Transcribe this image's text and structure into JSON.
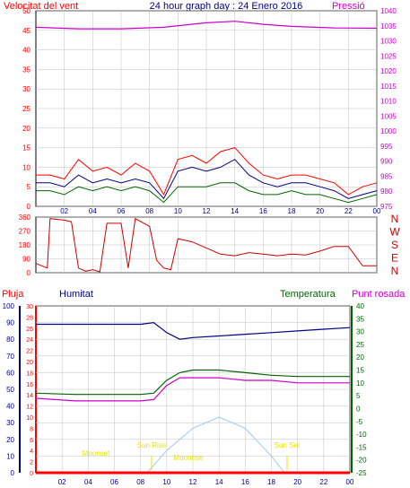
{
  "title": "24 hour graph day : 24 Enero 2016",
  "colors": {
    "red": "#ff0000",
    "blue": "#00008b",
    "green": "#006400",
    "magenta": "#cc00cc",
    "sky": "#a0c8f0",
    "yellow": "#e6e600",
    "grid": "#c0c0c0"
  },
  "time_ticks": [
    "02",
    "04",
    "06",
    "08",
    "10",
    "12",
    "14",
    "16",
    "18",
    "20",
    "22",
    "00"
  ],
  "panel1": {
    "left_title": "Velocitat del vent",
    "right_title": "Pressió",
    "left_ticks": [
      "50",
      "45",
      "40",
      "35",
      "30",
      "25",
      "20",
      "15",
      "10",
      "5",
      "0"
    ],
    "right_ticks": [
      "1040",
      "1035",
      "1030",
      "1025",
      "1020",
      "1015",
      "1010",
      "1005",
      "1000",
      "995",
      "990",
      "985",
      "980",
      "975"
    ]
  },
  "panel2": {
    "left_ticks": [
      "360",
      "270",
      "180",
      "90",
      "0"
    ],
    "compass": [
      "N",
      "W",
      "S",
      "E",
      "N"
    ]
  },
  "panel3": {
    "label_rain": "Pluja",
    "label_hum": "Humitat",
    "label_temp": "Temperatura",
    "label_dew": "Punt rosada",
    "hum_ticks": [
      "100",
      "90",
      "80",
      "70",
      "60",
      "50",
      "40",
      "30",
      "20",
      "10",
      "0"
    ],
    "rain_ticks": [
      "30",
      "28",
      "26",
      "24",
      "22",
      "20",
      "18",
      "16",
      "14",
      "12",
      "10",
      "8",
      "6",
      "4",
      "2",
      "0"
    ],
    "temp_ticks": [
      "40",
      "35",
      "30",
      "25",
      "20",
      "15",
      "10",
      "5",
      "0",
      "-5",
      "-10",
      "-15",
      "-20",
      "-25"
    ],
    "sun_labels": {
      "moonset": "Moonset",
      "sunrise": "Sun Rise",
      "moonrise": "Moonrise",
      "sunset": "Sun Set"
    }
  },
  "chart_data": [
    {
      "type": "line",
      "x_unit": "hour",
      "y_range": [
        0,
        50
      ],
      "y2_range": [
        975,
        1040
      ],
      "wind_gust": [
        [
          0,
          8
        ],
        [
          1,
          8
        ],
        [
          2,
          7
        ],
        [
          3,
          12
        ],
        [
          4,
          9
        ],
        [
          5,
          10
        ],
        [
          6,
          8
        ],
        [
          7,
          11
        ],
        [
          8,
          9
        ],
        [
          9,
          3
        ],
        [
          10,
          12
        ],
        [
          11,
          13
        ],
        [
          12,
          11
        ],
        [
          13,
          14
        ],
        [
          14,
          15
        ],
        [
          15,
          11
        ],
        [
          16,
          8
        ],
        [
          17,
          7
        ],
        [
          18,
          8
        ],
        [
          19,
          8
        ],
        [
          20,
          7
        ],
        [
          21,
          6
        ],
        [
          22,
          3
        ],
        [
          23,
          5
        ],
        [
          24,
          6
        ]
      ],
      "wind_avg": [
        [
          0,
          6
        ],
        [
          1,
          6
        ],
        [
          2,
          5
        ],
        [
          3,
          8
        ],
        [
          4,
          6
        ],
        [
          5,
          7
        ],
        [
          6,
          6
        ],
        [
          7,
          7
        ],
        [
          8,
          6
        ],
        [
          9,
          2
        ],
        [
          10,
          9
        ],
        [
          11,
          10
        ],
        [
          12,
          9
        ],
        [
          13,
          10
        ],
        [
          14,
          12
        ],
        [
          15,
          8
        ],
        [
          16,
          6
        ],
        [
          17,
          5
        ],
        [
          18,
          6
        ],
        [
          19,
          6
        ],
        [
          20,
          5
        ],
        [
          21,
          4
        ],
        [
          22,
          2
        ],
        [
          23,
          3
        ],
        [
          24,
          4
        ]
      ],
      "wind_speed": [
        [
          0,
          4
        ],
        [
          1,
          4
        ],
        [
          2,
          3
        ],
        [
          3,
          5
        ],
        [
          4,
          4
        ],
        [
          5,
          5
        ],
        [
          6,
          4
        ],
        [
          7,
          5
        ],
        [
          8,
          4
        ],
        [
          9,
          1
        ],
        [
          10,
          5
        ],
        [
          11,
          5
        ],
        [
          12,
          5
        ],
        [
          13,
          6
        ],
        [
          14,
          6
        ],
        [
          15,
          4
        ],
        [
          16,
          3
        ],
        [
          17,
          3
        ],
        [
          18,
          4
        ],
        [
          19,
          3
        ],
        [
          20,
          3
        ],
        [
          21,
          2
        ],
        [
          22,
          1
        ],
        [
          23,
          2
        ],
        [
          24,
          3
        ]
      ],
      "pressure": [
        [
          0,
          1034.5
        ],
        [
          3,
          1034
        ],
        [
          6,
          1034
        ],
        [
          9,
          1034.5
        ],
        [
          12,
          1036
        ],
        [
          14,
          1036.5
        ],
        [
          16,
          1035.5
        ],
        [
          18,
          1034.8
        ],
        [
          21,
          1034.3
        ],
        [
          24,
          1034.2
        ]
      ]
    },
    {
      "type": "scatter",
      "x_unit": "hour",
      "y_range": [
        0,
        360
      ],
      "wind_direction": [
        [
          0,
          60
        ],
        [
          0.8,
          30
        ],
        [
          1,
          350
        ],
        [
          2,
          340
        ],
        [
          2.5,
          330
        ],
        [
          3,
          30
        ],
        [
          3.5,
          10
        ],
        [
          4,
          20
        ],
        [
          4.5,
          5
        ],
        [
          5,
          320
        ],
        [
          6,
          320
        ],
        [
          6.5,
          30
        ],
        [
          7,
          350
        ],
        [
          8,
          300
        ],
        [
          8.5,
          80
        ],
        [
          9,
          30
        ],
        [
          9.5,
          20
        ],
        [
          10,
          220
        ],
        [
          11,
          200
        ],
        [
          12,
          160
        ],
        [
          13,
          120
        ],
        [
          14,
          110
        ],
        [
          15,
          130
        ],
        [
          16,
          120
        ],
        [
          17,
          110
        ],
        [
          18,
          120
        ],
        [
          19,
          115
        ],
        [
          20,
          140
        ],
        [
          21,
          170
        ],
        [
          22,
          170
        ],
        [
          23,
          45
        ],
        [
          24,
          45
        ]
      ]
    },
    {
      "type": "line",
      "x_unit": "hour",
      "hum_range": [
        0,
        100
      ],
      "rain_range": [
        0,
        30
      ],
      "temp_range": [
        -25,
        40
      ],
      "humidity": [
        [
          0,
          89
        ],
        [
          3,
          89
        ],
        [
          6,
          89
        ],
        [
          8,
          89
        ],
        [
          9,
          90
        ],
        [
          10,
          84
        ],
        [
          11,
          80
        ],
        [
          12,
          81
        ],
        [
          14,
          82
        ],
        [
          16,
          83
        ],
        [
          18,
          84
        ],
        [
          20,
          85
        ],
        [
          22,
          86
        ],
        [
          24,
          87
        ]
      ],
      "temperature": [
        [
          0,
          6
        ],
        [
          3,
          5.5
        ],
        [
          6,
          5.5
        ],
        [
          8,
          5.5
        ],
        [
          9,
          6
        ],
        [
          10,
          11
        ],
        [
          11,
          14
        ],
        [
          12,
          15
        ],
        [
          14,
          15
        ],
        [
          16,
          14
        ],
        [
          18,
          13
        ],
        [
          20,
          12.5
        ],
        [
          22,
          12.5
        ],
        [
          24,
          12.5
        ]
      ],
      "dew_point": [
        [
          0,
          4
        ],
        [
          3,
          3
        ],
        [
          6,
          3
        ],
        [
          8,
          3
        ],
        [
          9,
          3.5
        ],
        [
          10,
          9
        ],
        [
          11,
          12
        ],
        [
          12,
          12
        ],
        [
          14,
          12
        ],
        [
          16,
          11
        ],
        [
          18,
          11
        ],
        [
          20,
          10
        ],
        [
          22,
          10
        ],
        [
          24,
          10
        ]
      ],
      "rain": [
        [
          0,
          0
        ],
        [
          24,
          0
        ]
      ],
      "sun_elevation": [
        [
          8.5,
          0
        ],
        [
          10,
          4
        ],
        [
          12,
          8
        ],
        [
          14,
          10
        ],
        [
          16,
          8
        ],
        [
          18,
          3
        ],
        [
          19,
          0
        ]
      ]
    }
  ]
}
